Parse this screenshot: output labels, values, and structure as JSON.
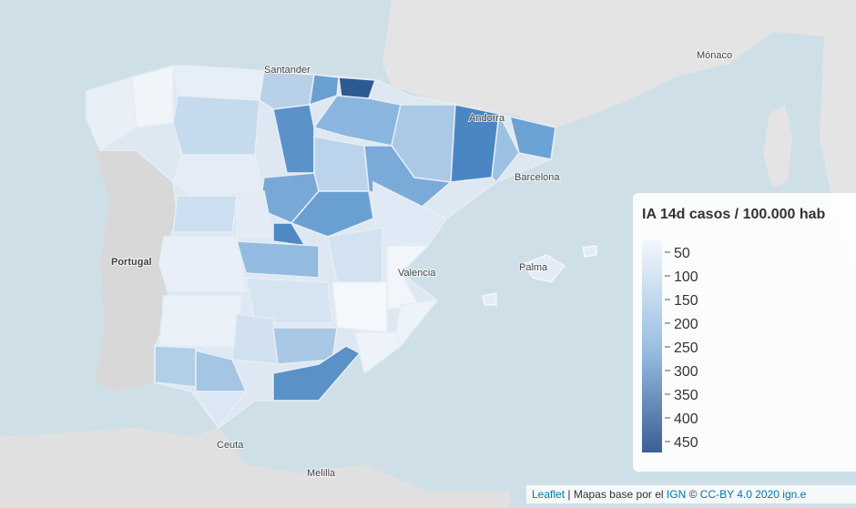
{
  "map": {
    "labels": [
      "Santander",
      "Andorra",
      "Mónaco",
      "Portugal",
      "Valencia",
      "Ceuta",
      "Melilla",
      "Palma",
      "Barcelona"
    ],
    "legend": {
      "title": "IA 14d casos / 100.000 hab",
      "ticks": [
        50,
        100,
        150,
        200,
        250,
        300,
        350,
        400,
        450
      ]
    },
    "attribution": {
      "leaflet": "Leaflet",
      "text1": "| Mapas base por el",
      "ign": "IGN",
      "copy": "©",
      "license": "CC-BY 4.0 2020",
      "site": "ign.e"
    }
  }
}
